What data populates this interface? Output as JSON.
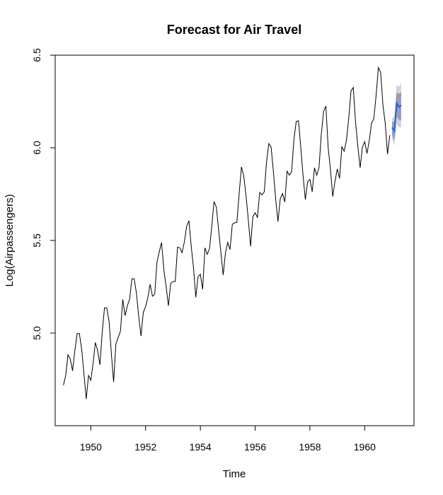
{
  "chart_data": {
    "type": "line",
    "title": "Forecast for Air Travel",
    "xlabel": "Time",
    "ylabel": "Log(Airpassengers)",
    "xlim": [
      1948.7,
      1961.8
    ],
    "ylim": [
      4.5,
      6.5
    ],
    "x_ticks": [
      1950,
      1952,
      1954,
      1956,
      1958,
      1960
    ],
    "y_ticks": [
      5.0,
      5.5,
      6.0,
      6.5
    ],
    "y_tick_labels": [
      "5.0",
      "5.5",
      "6.0",
      "6.5"
    ],
    "grid": false,
    "legend": "none",
    "series": [
      {
        "kind": "observed",
        "color": "#000000",
        "x_start": 1949.0,
        "step": 0.0833333,
        "values": [
          4.718,
          4.771,
          4.883,
          4.86,
          4.796,
          4.905,
          4.997,
          4.997,
          4.913,
          4.779,
          4.644,
          4.771,
          4.745,
          4.836,
          4.949,
          4.905,
          4.828,
          5.004,
          5.136,
          5.136,
          5.063,
          4.89,
          4.736,
          4.942,
          4.977,
          5.011,
          5.182,
          5.094,
          5.147,
          5.182,
          5.293,
          5.293,
          5.215,
          5.088,
          4.984,
          5.112,
          5.142,
          5.193,
          5.263,
          5.199,
          5.209,
          5.384,
          5.438,
          5.489,
          5.342,
          5.252,
          5.147,
          5.268,
          5.278,
          5.278,
          5.464,
          5.46,
          5.434,
          5.493,
          5.576,
          5.606,
          5.468,
          5.352,
          5.193,
          5.303,
          5.318,
          5.236,
          5.46,
          5.425,
          5.455,
          5.576,
          5.71,
          5.68,
          5.557,
          5.434,
          5.313,
          5.434,
          5.489,
          5.451,
          5.587,
          5.595,
          5.598,
          5.753,
          5.897,
          5.849,
          5.743,
          5.613,
          5.468,
          5.628,
          5.649,
          5.624,
          5.759,
          5.746,
          5.762,
          5.924,
          6.023,
          6.004,
          5.872,
          5.724,
          5.602,
          5.724,
          5.753,
          5.707,
          5.874,
          5.852,
          5.872,
          6.045,
          6.142,
          6.146,
          6.001,
          5.849,
          5.72,
          5.817,
          5.829,
          5.762,
          5.892,
          5.852,
          5.894,
          6.075,
          6.196,
          6.225,
          6.001,
          5.883,
          5.737,
          5.82,
          5.886,
          5.835,
          6.006,
          5.981,
          6.04,
          6.157,
          6.306,
          6.326,
          6.138,
          6.009,
          5.892,
          6.004,
          6.033,
          5.969,
          6.038,
          6.133,
          6.157,
          6.282,
          6.433,
          6.407,
          6.23,
          6.133,
          5.966,
          6.068
        ]
      },
      {
        "kind": "forecast",
        "color": "#2266dd",
        "x": [
          1961.0,
          1961.0833,
          1961.1667,
          1961.25,
          1961.3333
        ],
        "values": [
          6.11,
          6.09,
          6.24,
          6.22,
          6.23
        ],
        "band_80": [
          [
            6.07,
            6.14
          ],
          [
            6.04,
            6.14
          ],
          [
            6.17,
            6.3
          ],
          [
            6.15,
            6.29
          ],
          [
            6.15,
            6.3
          ]
        ],
        "band_95": [
          [
            6.05,
            6.16
          ],
          [
            6.01,
            6.17
          ],
          [
            6.13,
            6.34
          ],
          [
            6.11,
            6.33
          ],
          [
            6.11,
            6.35
          ]
        ],
        "band_80_color": "#9b9bb5",
        "band_95_color": "#d3d3dd"
      }
    ]
  }
}
